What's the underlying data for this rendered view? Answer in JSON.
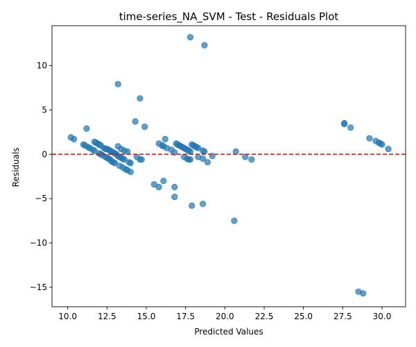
{
  "chart_data": {
    "type": "scatter",
    "title": "time-series_NA_SVM - Test - Residuals Plot",
    "xlabel": "Predicted Values",
    "ylabel": "Residuals",
    "xlim": [
      9.0,
      31.5
    ],
    "ylim": [
      -17.2,
      14.5
    ],
    "xticks": [
      10.0,
      12.5,
      15.0,
      17.5,
      20.0,
      22.5,
      25.0,
      27.5,
      30.0
    ],
    "xtick_labels": [
      "10.0",
      "12.5",
      "15.0",
      "17.5",
      "20.0",
      "22.5",
      "25.0",
      "27.5",
      "30.0"
    ],
    "yticks": [
      -15,
      -10,
      -5,
      0,
      5,
      10
    ],
    "ytick_labels": [
      "−15",
      "−10",
      "−5",
      "0",
      "5",
      "10"
    ],
    "reference_line": {
      "y": 0,
      "color": "#ff0000",
      "style": "dashed"
    },
    "point_color": "#1f77b4",
    "grid": false,
    "legend": "none",
    "series": [
      {
        "points": [
          [
            10.2,
            1.9
          ],
          [
            10.4,
            1.7
          ],
          [
            11.2,
            2.9
          ],
          [
            11.0,
            1.1
          ],
          [
            11.1,
            1.0
          ],
          [
            11.3,
            0.8
          ],
          [
            11.4,
            0.7
          ],
          [
            11.6,
            0.5
          ],
          [
            11.7,
            0.4
          ],
          [
            11.7,
            1.4
          ],
          [
            11.8,
            1.3
          ],
          [
            11.9,
            1.2
          ],
          [
            12.0,
            1.1
          ],
          [
            12.1,
            1.0
          ],
          [
            12.0,
            0.1
          ],
          [
            12.1,
            0.0
          ],
          [
            12.2,
            -0.1
          ],
          [
            12.3,
            0.7
          ],
          [
            12.4,
            0.6
          ],
          [
            12.5,
            0.6
          ],
          [
            12.6,
            0.5
          ],
          [
            12.7,
            0.4
          ],
          [
            12.8,
            0.3
          ],
          [
            12.9,
            0.2
          ],
          [
            13.0,
            0.1
          ],
          [
            13.1,
            0.0
          ],
          [
            12.4,
            -0.3
          ],
          [
            12.5,
            -0.4
          ],
          [
            12.6,
            -0.5
          ],
          [
            12.7,
            -0.6
          ],
          [
            12.8,
            -0.8
          ],
          [
            12.9,
            -0.9
          ],
          [
            13.0,
            -1.0
          ],
          [
            13.2,
            -0.2
          ],
          [
            13.3,
            -0.3
          ],
          [
            13.4,
            -0.4
          ],
          [
            13.5,
            -0.5
          ],
          [
            13.6,
            -0.6
          ],
          [
            13.2,
            0.9
          ],
          [
            13.4,
            0.6
          ],
          [
            13.6,
            0.4
          ],
          [
            13.8,
            0.3
          ],
          [
            13.3,
            -1.3
          ],
          [
            13.5,
            -1.5
          ],
          [
            13.7,
            -1.7
          ],
          [
            13.8,
            -1.8
          ],
          [
            14.0,
            -2.0
          ],
          [
            13.9,
            -0.9
          ],
          [
            14.0,
            -1.0
          ],
          [
            14.4,
            -0.3
          ],
          [
            14.6,
            -0.6
          ],
          [
            14.7,
            -0.6
          ],
          [
            13.2,
            7.9
          ],
          [
            14.6,
            6.3
          ],
          [
            14.3,
            3.7
          ],
          [
            14.9,
            3.1
          ],
          [
            15.5,
            -3.4
          ],
          [
            15.8,
            -3.7
          ],
          [
            16.1,
            -3.0
          ],
          [
            16.8,
            -3.7
          ],
          [
            16.8,
            -4.8
          ],
          [
            15.8,
            1.2
          ],
          [
            16.0,
            1.0
          ],
          [
            16.1,
            0.9
          ],
          [
            16.2,
            1.7
          ],
          [
            16.3,
            0.7
          ],
          [
            16.6,
            0.5
          ],
          [
            16.8,
            0.2
          ],
          [
            16.9,
            1.2
          ],
          [
            17.0,
            1.1
          ],
          [
            17.1,
            1.0
          ],
          [
            17.2,
            0.9
          ],
          [
            17.3,
            0.8
          ],
          [
            17.4,
            0.7
          ],
          [
            17.5,
            0.6
          ],
          [
            17.6,
            0.5
          ],
          [
            17.7,
            0.4
          ],
          [
            17.8,
            0.3
          ],
          [
            17.4,
            -0.3
          ],
          [
            17.6,
            -0.5
          ],
          [
            17.7,
            -0.6
          ],
          [
            17.8,
            -0.6
          ],
          [
            17.9,
            1.1
          ],
          [
            18.0,
            1.0
          ],
          [
            18.1,
            0.9
          ],
          [
            18.2,
            0.8
          ],
          [
            18.3,
            0.7
          ],
          [
            18.3,
            -0.3
          ],
          [
            18.6,
            -0.5
          ],
          [
            18.6,
            0.4
          ],
          [
            18.7,
            0.3
          ],
          [
            18.9,
            -0.9
          ],
          [
            19.2,
            -0.2
          ],
          [
            17.8,
            13.2
          ],
          [
            18.7,
            12.3
          ],
          [
            17.9,
            -5.8
          ],
          [
            18.6,
            -5.6
          ],
          [
            20.6,
            -7.5
          ],
          [
            20.7,
            0.3
          ],
          [
            21.3,
            -0.3
          ],
          [
            21.7,
            -0.6
          ],
          [
            27.6,
            3.5
          ],
          [
            27.6,
            3.4
          ],
          [
            28.0,
            3.0
          ],
          [
            29.2,
            1.8
          ],
          [
            29.6,
            1.5
          ],
          [
            29.8,
            1.3
          ],
          [
            29.9,
            1.2
          ],
          [
            30.0,
            1.1
          ],
          [
            30.4,
            0.6
          ],
          [
            28.5,
            -15.5
          ],
          [
            28.8,
            -15.7
          ]
        ]
      }
    ]
  }
}
